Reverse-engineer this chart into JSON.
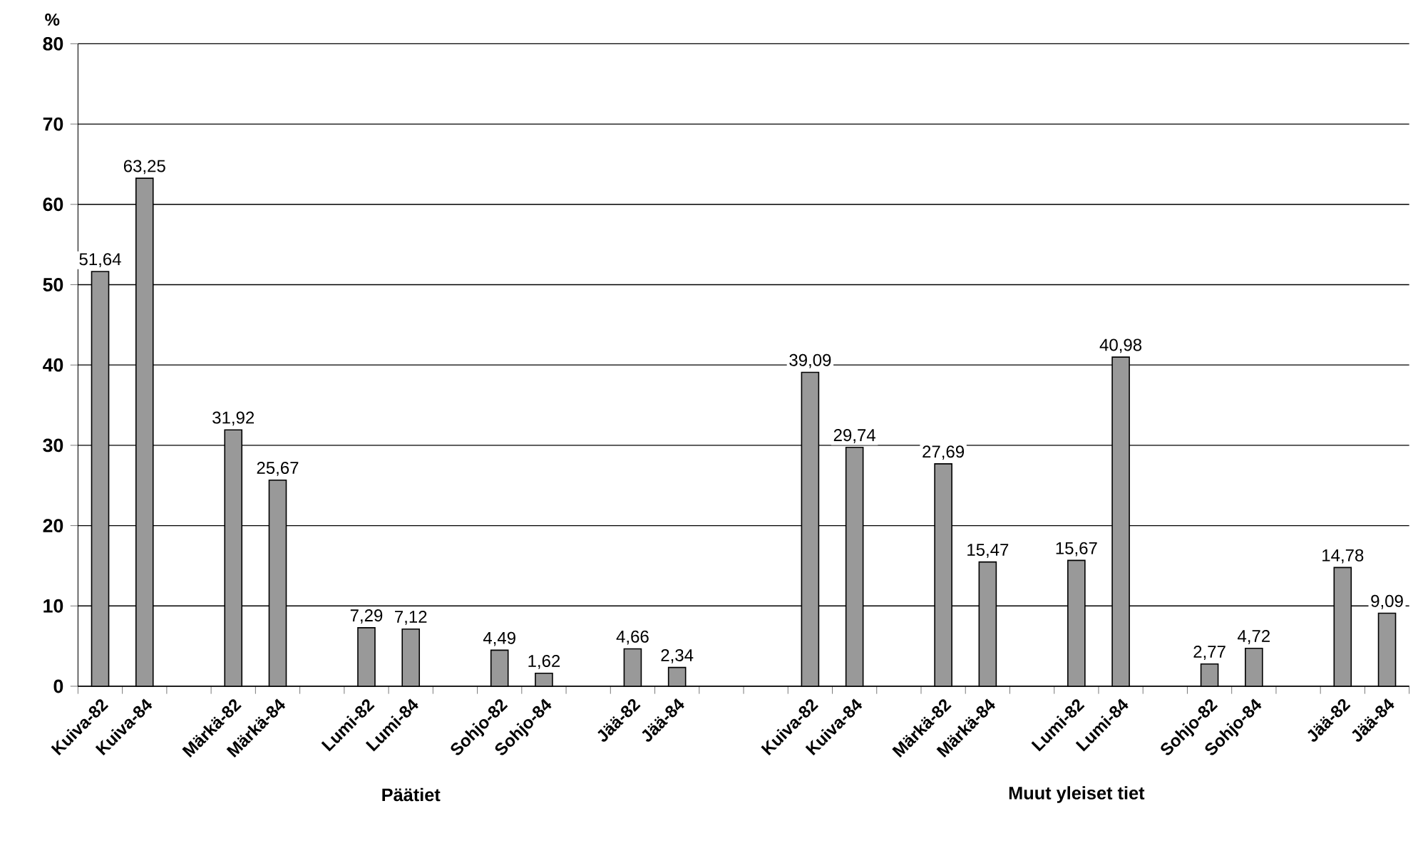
{
  "chart_data": {
    "type": "bar",
    "ylabel": "%",
    "categories": [
      "Kuiva-82",
      "Kuiva-84",
      null,
      "Märkä-82",
      "Märkä-84",
      null,
      "Lumi-82",
      "Lumi-84",
      null,
      "Sohjo-82",
      "Sohjo-84",
      null,
      "Jää-82",
      "Jää-84",
      null,
      null,
      "Kuiva-82",
      "Kuiva-84",
      null,
      "Märkä-82",
      "Märkä-84",
      null,
      "Lumi-82",
      "Lumi-84",
      null,
      "Sohjo-82",
      "Sohjo-84",
      null,
      "Jää-82",
      "Jää-84"
    ],
    "values": [
      51.64,
      63.25,
      null,
      31.92,
      25.67,
      null,
      7.29,
      7.12,
      null,
      4.49,
      1.62,
      null,
      4.66,
      2.34,
      null,
      null,
      39.09,
      29.74,
      null,
      27.69,
      15.47,
      null,
      15.67,
      40.98,
      null,
      2.77,
      4.72,
      null,
      14.78,
      9.09
    ],
    "value_labels": [
      "51,64",
      "63,25",
      null,
      "31,92",
      "25,67",
      null,
      "7,29",
      "7,12",
      null,
      "4,49",
      "1,62",
      null,
      "4,66",
      "2,34",
      null,
      null,
      "39,09",
      "29,74",
      null,
      "27,69",
      "15,47",
      null,
      "15,67",
      "40,98",
      null,
      "2,77",
      "4,72",
      null,
      "14,78",
      "9,09"
    ],
    "color": "#999999",
    "ylim": [
      0,
      80
    ],
    "yticks": [
      0,
      10,
      20,
      30,
      40,
      50,
      60,
      70,
      80
    ],
    "grid": "y",
    "annotations": [
      "Päätiet",
      "Muut yleiset tiet"
    ]
  }
}
